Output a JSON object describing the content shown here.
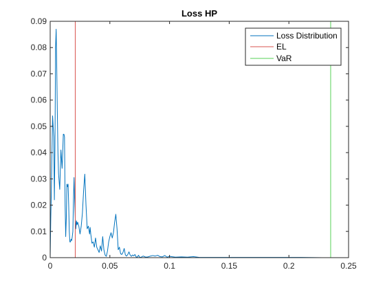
{
  "chart_data": {
    "type": "line",
    "title": "Loss HP",
    "xlabel": "",
    "ylabel": "",
    "xlim": [
      0,
      0.25
    ],
    "ylim": [
      0,
      0.09
    ],
    "xticks": [
      0,
      0.05,
      0.1,
      0.15,
      0.2,
      0.25
    ],
    "xtick_labels": [
      "0",
      "0.05",
      "0.1",
      "0.15",
      "0.2",
      "0.25"
    ],
    "yticks": [
      0,
      0.01,
      0.02,
      0.03,
      0.04,
      0.05,
      0.06,
      0.07,
      0.08,
      0.09
    ],
    "ytick_labels": [
      "0",
      "0.01",
      "0.02",
      "0.03",
      "0.04",
      "0.05",
      "0.06",
      "0.07",
      "0.08",
      "0.09"
    ],
    "grid": false,
    "legend_position": "top-right",
    "colors": {
      "loss_distribution": "#0072BD",
      "el": "#D9534F",
      "var": "#55D155",
      "axis": "#262626",
      "background": "#ffffff"
    },
    "series": [
      {
        "name": "Loss Distribution",
        "type": "line",
        "x": [
          0,
          0.0005,
          0.001,
          0.0015,
          0.002,
          0.003,
          0.0035,
          0.004,
          0.0045,
          0.005,
          0.0055,
          0.006,
          0.0065,
          0.007,
          0.008,
          0.009,
          0.01,
          0.011,
          0.0115,
          0.012,
          0.0125,
          0.013,
          0.0135,
          0.014,
          0.0145,
          0.015,
          0.0155,
          0.016,
          0.0165,
          0.017,
          0.0175,
          0.018,
          0.0185,
          0.019,
          0.0195,
          0.02,
          0.0205,
          0.021,
          0.0215,
          0.022,
          0.0225,
          0.023,
          0.024,
          0.025,
          0.026,
          0.027,
          0.028,
          0.029,
          0.03,
          0.031,
          0.032,
          0.033,
          0.0335,
          0.034,
          0.035,
          0.036,
          0.037,
          0.038,
          0.039,
          0.04,
          0.041,
          0.042,
          0.043,
          0.044,
          0.045,
          0.046,
          0.047,
          0.048,
          0.049,
          0.05,
          0.051,
          0.052,
          0.053,
          0.054,
          0.055,
          0.056,
          0.057,
          0.058,
          0.059,
          0.06,
          0.061,
          0.062,
          0.063,
          0.064,
          0.065,
          0.066,
          0.067,
          0.068,
          0.069,
          0.07,
          0.071,
          0.072,
          0.073,
          0.074,
          0.075,
          0.076,
          0.077,
          0.078,
          0.08,
          0.082,
          0.084,
          0.086,
          0.088,
          0.09,
          0.092,
          0.094,
          0.096,
          0.098,
          0.1,
          0.105,
          0.11,
          0.115,
          0.12,
          0.125,
          0.13,
          0.15,
          0.17,
          0.19,
          0.21,
          0.228
        ],
        "y": [
          0,
          0.015,
          0.026,
          0.04,
          0.054,
          0.046,
          0.022,
          0.041,
          0.08,
          0.087,
          0.072,
          0.055,
          0.04,
          0.032,
          0.026,
          0.041,
          0.034,
          0.047,
          0.047,
          0.046,
          0.02,
          0.008,
          0.015,
          0.028,
          0.027,
          0.028,
          0.02,
          0.01,
          0.006,
          0.006,
          0.007,
          0.0065,
          0.008,
          0.01,
          0.022,
          0.0305,
          0.022,
          0.015,
          0.011,
          0.014,
          0.0125,
          0.0135,
          0.012,
          0.009,
          0.012,
          0.017,
          0.0255,
          0.0318,
          0.02,
          0.011,
          0.012,
          0.009,
          0.0115,
          0.009,
          0.0055,
          0.006,
          0.004,
          0.0075,
          0.004,
          0.003,
          0.002,
          0.0045,
          0.0025,
          0.008,
          0.003,
          0.001,
          0.0005,
          0.0025,
          0.006,
          0.008,
          0.0095,
          0.0075,
          0.0095,
          0.0135,
          0.0165,
          0.011,
          0.003,
          0.004,
          0.0015,
          0.0012,
          0.002,
          0.0035,
          0.001,
          0.0006,
          0.0012,
          0.0022,
          0.001,
          0.0005,
          0.001,
          0.0007,
          0.0012,
          0.0003,
          0.0002,
          0.0009,
          0.0002,
          0.0001,
          0.0004,
          0.0006,
          0.0002,
          0.0003,
          0.0006,
          0.0008,
          0.0006,
          0.0009,
          0.0004,
          0.0003,
          0.0008,
          0.0002,
          0.0005,
          0.0002,
          0.0003,
          0.0002,
          0.0004,
          0.0001,
          0.0001,
          0.0001,
          0.0001,
          0.0001,
          0.0001,
          0
        ]
      },
      {
        "name": "EL",
        "type": "vline",
        "x": 0.021
      },
      {
        "name": "VaR",
        "type": "vline",
        "x": 0.235
      }
    ],
    "legend": [
      "Loss Distribution",
      "EL",
      "VaR"
    ]
  }
}
